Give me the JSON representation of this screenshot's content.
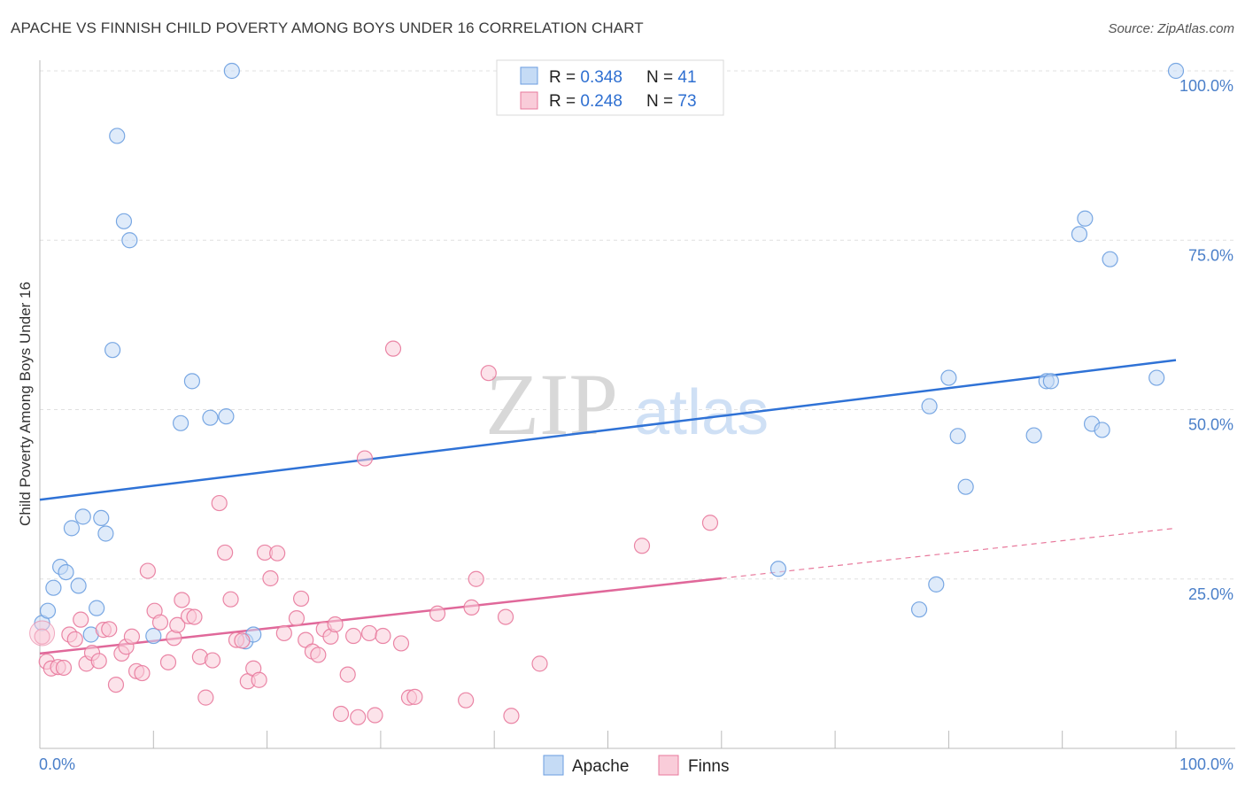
{
  "title": "APACHE VS FINNISH CHILD POVERTY AMONG BOYS UNDER 16 CORRELATION CHART",
  "source": "Source: ZipAtlas.com",
  "watermark": {
    "zip": "ZIP",
    "atlas": "atlas"
  },
  "colors": {
    "apache": "#6b9ee0",
    "apache_fill": "#c5dbf5",
    "finns": "#e8799c",
    "finns_fill": "#f9ccd9",
    "tick_text": "#4a7fc9",
    "grid": "#e0e0e0"
  },
  "legend": {
    "rows": [
      {
        "r_label": "R = ",
        "r_value": "0.348",
        "n_label": "N = ",
        "n_value": "41"
      },
      {
        "r_label": "R = ",
        "r_value": "0.248",
        "n_label": "N = ",
        "n_value": "73"
      }
    ]
  },
  "bottom_legend": {
    "apache": "Apache",
    "finns": "Finns"
  },
  "chart_data": {
    "type": "scatter",
    "title": "APACHE VS FINNISH CHILD POVERTY AMONG BOYS UNDER 16 CORRELATION CHART",
    "xlabel": "",
    "ylabel": "Child Poverty Among Boys Under 16",
    "xlim": [
      0,
      100
    ],
    "ylim": [
      0,
      100
    ],
    "x_tick_labels": [
      "0.0%",
      "100.0%"
    ],
    "y_tick_labels": [
      "25.0%",
      "50.0%",
      "75.0%",
      "100.0%"
    ],
    "y_ticks": [
      25,
      50,
      75,
      100
    ],
    "grid": true,
    "legend_position": "top-center",
    "series": [
      {
        "name": "Apache",
        "r": 0.348,
        "n": 41,
        "trend": {
          "x": [
            0,
            100
          ],
          "y": [
            36.7,
            57.3
          ],
          "dashed_from": null
        },
        "points": [
          [
            0.2,
            18.5
          ],
          [
            0.7,
            20.3
          ],
          [
            1.2,
            23.7
          ],
          [
            1.8,
            26.8
          ],
          [
            2.3,
            26.0
          ],
          [
            2.8,
            32.5
          ],
          [
            3.4,
            24.0
          ],
          [
            3.8,
            34.2
          ],
          [
            4.5,
            16.8
          ],
          [
            5.0,
            20.7
          ],
          [
            5.4,
            34.0
          ],
          [
            5.8,
            31.7
          ],
          [
            6.4,
            58.8
          ],
          [
            6.8,
            90.4
          ],
          [
            7.4,
            77.8
          ],
          [
            7.9,
            75.0
          ],
          [
            10.0,
            16.6
          ],
          [
            12.4,
            48.0
          ],
          [
            13.4,
            54.2
          ],
          [
            15.0,
            48.8
          ],
          [
            16.4,
            49.0
          ],
          [
            16.9,
            100.0
          ],
          [
            18.1,
            15.8
          ],
          [
            18.8,
            16.8
          ],
          [
            65.0,
            26.5
          ],
          [
            77.4,
            20.5
          ],
          [
            78.9,
            24.2
          ],
          [
            78.3,
            50.5
          ],
          [
            80.0,
            54.7
          ],
          [
            80.8,
            46.1
          ],
          [
            81.5,
            38.6
          ],
          [
            87.5,
            46.2
          ],
          [
            88.6,
            54.2
          ],
          [
            89.0,
            54.2
          ],
          [
            91.5,
            75.9
          ],
          [
            92.0,
            78.2
          ],
          [
            92.6,
            47.9
          ],
          [
            93.5,
            47.0
          ],
          [
            94.2,
            72.2
          ],
          [
            98.3,
            54.7
          ],
          [
            100.0,
            100.0
          ]
        ]
      },
      {
        "name": "Finns",
        "r": 0.248,
        "n": 73,
        "trend": {
          "x": [
            0,
            100
          ],
          "y": [
            14.0,
            32.5
          ],
          "dashed_from": 60
        },
        "points": [
          [
            0.2,
            16.5
          ],
          [
            0.6,
            12.8
          ],
          [
            1.0,
            11.8
          ],
          [
            1.6,
            12.0
          ],
          [
            2.1,
            11.9
          ],
          [
            2.6,
            16.8
          ],
          [
            3.1,
            16.1
          ],
          [
            3.6,
            19.0
          ],
          [
            4.1,
            12.5
          ],
          [
            4.6,
            14.1
          ],
          [
            5.2,
            12.9
          ],
          [
            5.6,
            17.5
          ],
          [
            6.1,
            17.6
          ],
          [
            6.7,
            9.4
          ],
          [
            7.2,
            14.0
          ],
          [
            7.6,
            15.0
          ],
          [
            8.1,
            16.5
          ],
          [
            8.5,
            11.4
          ],
          [
            9.0,
            11.1
          ],
          [
            9.5,
            26.2
          ],
          [
            10.1,
            20.3
          ],
          [
            10.6,
            18.6
          ],
          [
            11.3,
            12.7
          ],
          [
            11.8,
            16.3
          ],
          [
            12.1,
            18.2
          ],
          [
            12.5,
            21.9
          ],
          [
            13.1,
            19.5
          ],
          [
            13.6,
            19.4
          ],
          [
            14.1,
            13.5
          ],
          [
            14.6,
            7.5
          ],
          [
            15.2,
            13.0
          ],
          [
            15.8,
            36.2
          ],
          [
            16.3,
            28.9
          ],
          [
            16.8,
            22.0
          ],
          [
            17.3,
            16.0
          ],
          [
            17.8,
            15.9
          ],
          [
            18.3,
            9.9
          ],
          [
            18.8,
            11.8
          ],
          [
            19.3,
            10.1
          ],
          [
            19.8,
            28.9
          ],
          [
            20.3,
            25.1
          ],
          [
            20.9,
            28.8
          ],
          [
            21.5,
            17.0
          ],
          [
            22.6,
            19.2
          ],
          [
            23.0,
            22.1
          ],
          [
            23.4,
            16.0
          ],
          [
            24.0,
            14.3
          ],
          [
            24.5,
            13.8
          ],
          [
            25.0,
            17.6
          ],
          [
            25.6,
            16.5
          ],
          [
            26.0,
            18.3
          ],
          [
            26.5,
            5.1
          ],
          [
            27.1,
            10.9
          ],
          [
            27.6,
            16.6
          ],
          [
            28.0,
            4.6
          ],
          [
            28.6,
            42.8
          ],
          [
            29.0,
            17.0
          ],
          [
            29.5,
            4.9
          ],
          [
            30.2,
            16.6
          ],
          [
            31.1,
            59.0
          ],
          [
            31.8,
            15.5
          ],
          [
            32.5,
            7.5
          ],
          [
            33.0,
            7.6
          ],
          [
            35.0,
            19.9
          ],
          [
            37.5,
            7.1
          ],
          [
            38.0,
            20.8
          ],
          [
            38.4,
            25.0
          ],
          [
            39.5,
            55.4
          ],
          [
            41.0,
            19.4
          ],
          [
            41.5,
            4.8
          ],
          [
            44.0,
            12.5
          ],
          [
            53.0,
            29.9
          ],
          [
            59.0,
            33.3
          ]
        ]
      }
    ]
  }
}
